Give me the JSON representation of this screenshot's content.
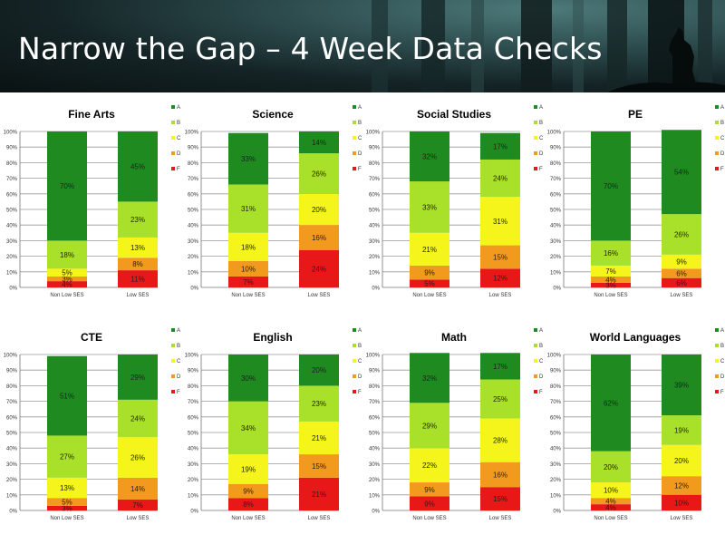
{
  "page": {
    "title": "Narrow the Gap – 4 Week Data Checks"
  },
  "legend_labels": [
    "A",
    "B",
    "C",
    "D",
    "F"
  ],
  "colors": {
    "A": "#1f8a1f",
    "B": "#a8e02a",
    "C": "#f5f51c",
    "D": "#f29a1e",
    "F": "#e81818"
  },
  "chart_data": [
    {
      "type": "bar",
      "title": "Fine Arts",
      "stacked": true,
      "categories": [
        "Non Low SES",
        "Low SES"
      ],
      "yticks": [
        "0%",
        "10%",
        "20%",
        "30%",
        "40%",
        "50%",
        "60%",
        "70%",
        "80%",
        "90%",
        "100%"
      ],
      "ylim": [
        0,
        100
      ],
      "series": [
        {
          "name": "A",
          "values": [
            70,
            45
          ]
        },
        {
          "name": "B",
          "values": [
            18,
            23
          ]
        },
        {
          "name": "C",
          "values": [
            5,
            13
          ]
        },
        {
          "name": "D",
          "values": [
            3,
            8
          ]
        },
        {
          "name": "F",
          "values": [
            4,
            11
          ]
        }
      ]
    },
    {
      "type": "bar",
      "title": "Science",
      "stacked": true,
      "categories": [
        "Non Low SES",
        "Low SES"
      ],
      "yticks": [
        "0%",
        "10%",
        "20%",
        "30%",
        "40%",
        "50%",
        "60%",
        "70%",
        "80%",
        "90%",
        "100%"
      ],
      "ylim": [
        0,
        100
      ],
      "series": [
        {
          "name": "A",
          "values": [
            33,
            14
          ]
        },
        {
          "name": "B",
          "values": [
            31,
            26
          ]
        },
        {
          "name": "C",
          "values": [
            18,
            20
          ]
        },
        {
          "name": "D",
          "values": [
            10,
            16
          ]
        },
        {
          "name": "F",
          "values": [
            7,
            24
          ]
        }
      ]
    },
    {
      "type": "bar",
      "title": "Social Studies",
      "stacked": true,
      "categories": [
        "Non Low SES",
        "Low SES"
      ],
      "yticks": [
        "0%",
        "10%",
        "20%",
        "30%",
        "40%",
        "50%",
        "60%",
        "70%",
        "80%",
        "90%",
        "100%"
      ],
      "ylim": [
        0,
        100
      ],
      "series": [
        {
          "name": "A",
          "values": [
            32,
            17
          ]
        },
        {
          "name": "B",
          "values": [
            33,
            24
          ]
        },
        {
          "name": "C",
          "values": [
            21,
            31
          ]
        },
        {
          "name": "D",
          "values": [
            9,
            15
          ]
        },
        {
          "name": "F",
          "values": [
            5,
            12
          ]
        }
      ]
    },
    {
      "type": "bar",
      "title": "PE",
      "stacked": true,
      "categories": [
        "Non Low SES",
        "Low SES"
      ],
      "yticks": [
        "0%",
        "10%",
        "20%",
        "30%",
        "40%",
        "50%",
        "60%",
        "70%",
        "80%",
        "90%",
        "100%"
      ],
      "ylim": [
        0,
        100
      ],
      "series": [
        {
          "name": "A",
          "values": [
            70,
            54
          ]
        },
        {
          "name": "B",
          "values": [
            16,
            26
          ]
        },
        {
          "name": "C",
          "values": [
            7,
            9
          ]
        },
        {
          "name": "D",
          "values": [
            4,
            6
          ]
        },
        {
          "name": "F",
          "values": [
            3,
            6
          ]
        }
      ]
    },
    {
      "type": "bar",
      "title": "CTE",
      "stacked": true,
      "categories": [
        "Non Low SES",
        "Low SES"
      ],
      "yticks": [
        "0%",
        "10%",
        "20%",
        "30%",
        "40%",
        "50%",
        "60%",
        "70%",
        "80%",
        "90%",
        "100%"
      ],
      "ylim": [
        0,
        100
      ],
      "series": [
        {
          "name": "A",
          "values": [
            51,
            29
          ]
        },
        {
          "name": "B",
          "values": [
            27,
            24
          ]
        },
        {
          "name": "C",
          "values": [
            13,
            26
          ]
        },
        {
          "name": "D",
          "values": [
            5,
            14
          ]
        },
        {
          "name": "F",
          "values": [
            3,
            7
          ]
        }
      ]
    },
    {
      "type": "bar",
      "title": "English",
      "stacked": true,
      "categories": [
        "Non Low SES",
        "Low SES"
      ],
      "yticks": [
        "0%",
        "10%",
        "20%",
        "30%",
        "40%",
        "50%",
        "60%",
        "70%",
        "80%",
        "90%",
        "100%"
      ],
      "ylim": [
        0,
        100
      ],
      "series": [
        {
          "name": "A",
          "values": [
            30,
            20
          ]
        },
        {
          "name": "B",
          "values": [
            34,
            23
          ]
        },
        {
          "name": "C",
          "values": [
            19,
            21
          ]
        },
        {
          "name": "D",
          "values": [
            9,
            15
          ]
        },
        {
          "name": "F",
          "values": [
            8,
            21
          ]
        }
      ]
    },
    {
      "type": "bar",
      "title": "Math",
      "stacked": true,
      "categories": [
        "Non Low SES",
        "Low SES"
      ],
      "yticks": [
        "0%",
        "10%",
        "20%",
        "30%",
        "40%",
        "50%",
        "60%",
        "70%",
        "80%",
        "90%",
        "100%"
      ],
      "ylim": [
        0,
        100
      ],
      "series": [
        {
          "name": "A",
          "values": [
            32,
            17
          ]
        },
        {
          "name": "B",
          "values": [
            29,
            25
          ]
        },
        {
          "name": "C",
          "values": [
            22,
            28
          ]
        },
        {
          "name": "D",
          "values": [
            9,
            16
          ]
        },
        {
          "name": "F",
          "values": [
            9,
            15
          ]
        }
      ]
    },
    {
      "type": "bar",
      "title": "World Languages",
      "stacked": true,
      "categories": [
        "Non Low SES",
        "Low SES"
      ],
      "yticks": [
        "0%",
        "10%",
        "20%",
        "30%",
        "40%",
        "50%",
        "60%",
        "70%",
        "80%",
        "90%",
        "100%"
      ],
      "ylim": [
        0,
        100
      ],
      "series": [
        {
          "name": "A",
          "values": [
            62,
            39
          ]
        },
        {
          "name": "B",
          "values": [
            20,
            19
          ]
        },
        {
          "name": "C",
          "values": [
            10,
            20
          ]
        },
        {
          "name": "D",
          "values": [
            4,
            12
          ]
        },
        {
          "name": "F",
          "values": [
            4,
            10
          ]
        }
      ]
    }
  ]
}
